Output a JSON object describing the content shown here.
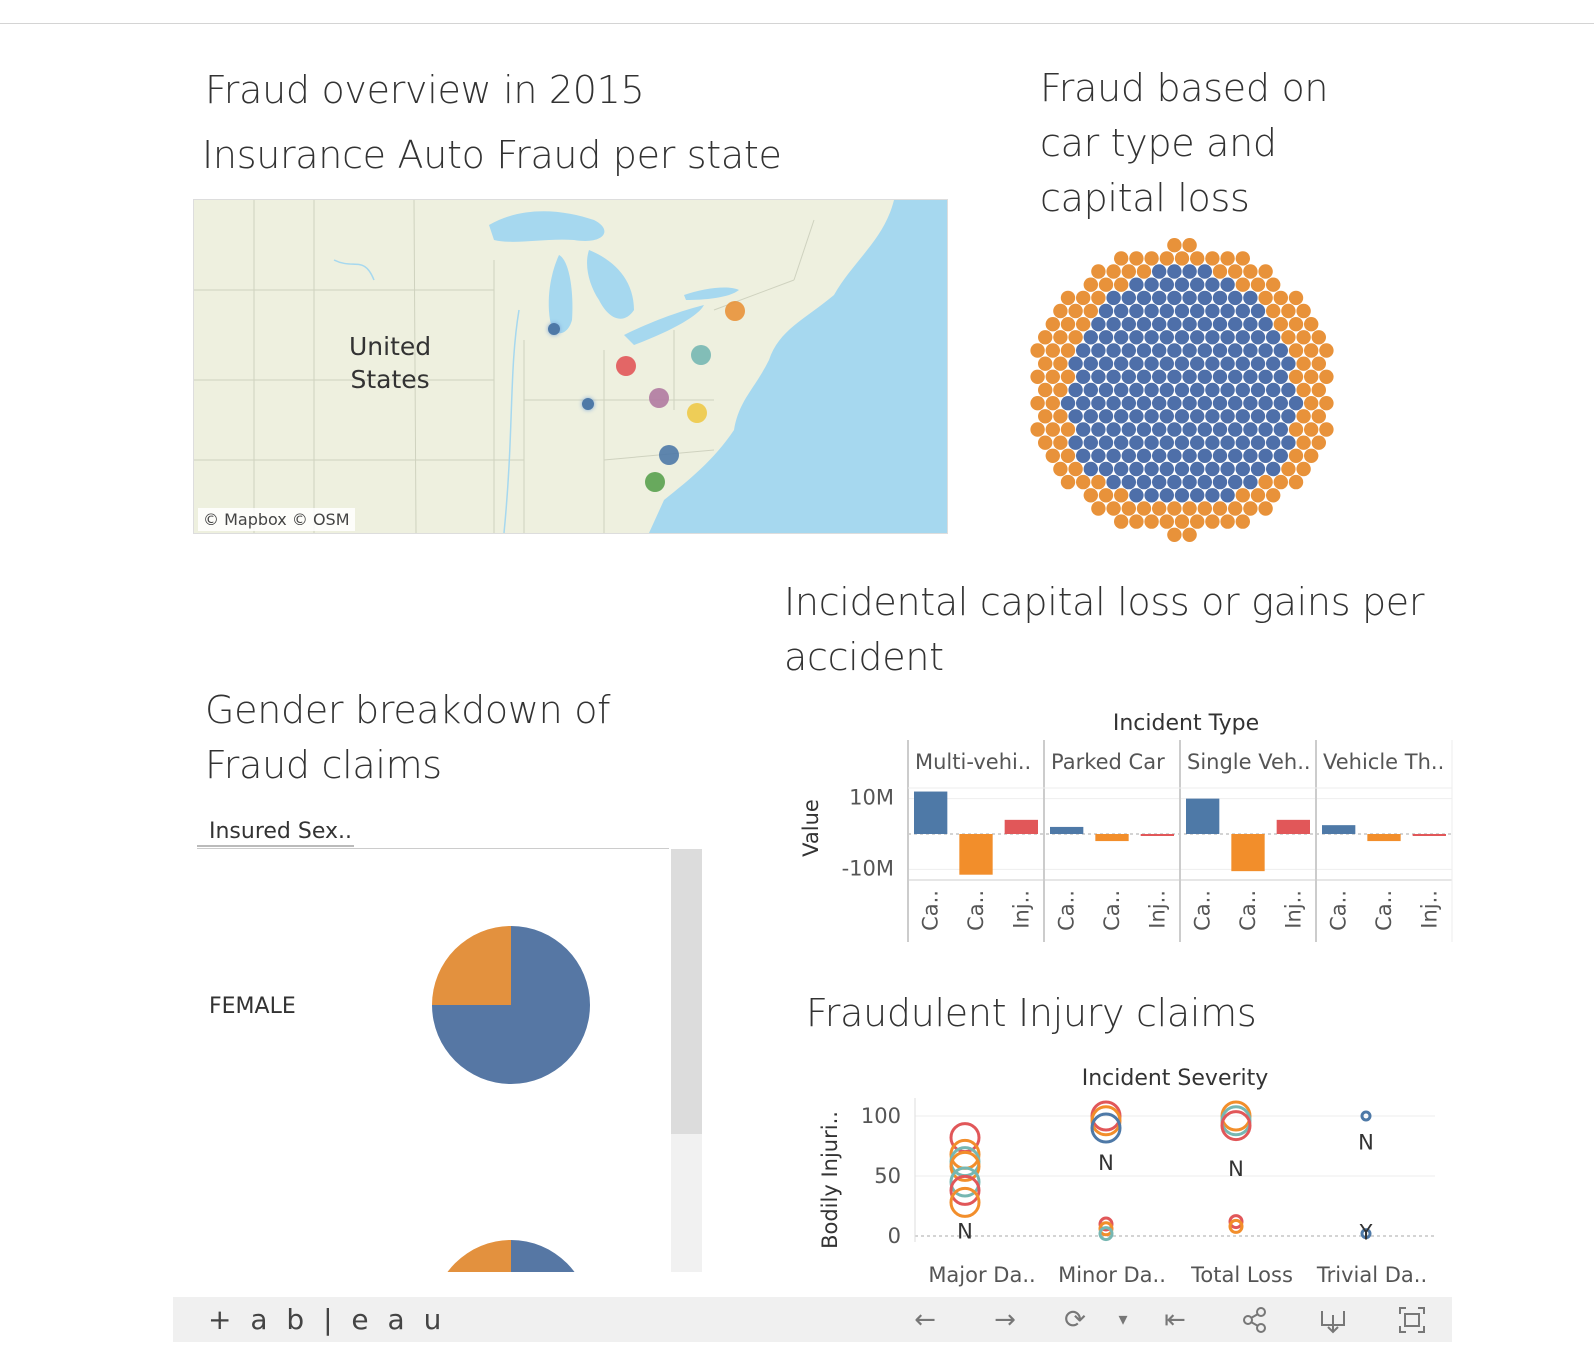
{
  "titles": {
    "overview": "Fraud overview in 2015",
    "map_title": "Insurance Auto Fraud per state",
    "car_type_line1": "Fraud based on",
    "car_type_line2": "car type and",
    "car_type_line3": "capital loss",
    "capital_line1": "Incidental capital loss or gains per",
    "capital_line2": "accident",
    "gender_line1": "Gender breakdown of",
    "gender_line2": "Fraud claims",
    "injury": "Fraudulent Injury claims"
  },
  "map": {
    "country_label_line1": "United",
    "country_label_line2": "States",
    "credit": "© Mapbox  © OSM",
    "colors": {
      "land": "#eef0df",
      "water": "#a6d8ef"
    }
  },
  "gender": {
    "header": "Insured Sex..",
    "rows": [
      {
        "label": "FEMALE",
        "share_blue": 0.75,
        "share_orange": 0.25
      },
      {
        "label": "",
        "share_blue": 0.5,
        "share_orange": 0.5
      }
    ]
  },
  "chart_data": [
    {
      "type": "bar",
      "title": "Incident Type",
      "ylabel": "Value",
      "yticks": [
        "10M",
        "-10M"
      ],
      "ylim": [
        -13000000,
        13000000
      ],
      "panels": [
        "Multi-vehi..",
        "Parked Car",
        "Single Veh..",
        "Vehicle Th.."
      ],
      "categories": [
        "Ca..",
        "Ca..",
        "Inj.."
      ],
      "series_colors": [
        "#4e79a7",
        "#f28e2b",
        "#e15759"
      ],
      "values": [
        [
          12000000,
          -11500000,
          4000000
        ],
        [
          2000000,
          -2000000,
          -400000
        ],
        [
          10000000,
          -10500000,
          4000000
        ],
        [
          2500000,
          -2000000,
          -400000
        ]
      ]
    },
    {
      "type": "scatter",
      "title": "Incident Severity",
      "ylabel": "Bodily Injuri..",
      "yticks": [
        "100",
        "50",
        "0"
      ],
      "ylim": [
        -5,
        115
      ],
      "categories": [
        "Major Da..",
        "Minor Da..",
        "Total Loss",
        "Trivial Da.."
      ],
      "point_labels": [
        "N",
        "N",
        "N",
        "N",
        "Y"
      ],
      "points": [
        {
          "cat": 0,
          "y": 82,
          "color": "#e15759"
        },
        {
          "cat": 0,
          "y": 68,
          "color": "#f28e2b"
        },
        {
          "cat": 0,
          "y": 62,
          "color": "#76b7b2"
        },
        {
          "cat": 0,
          "y": 58,
          "color": "#f28e2b"
        },
        {
          "cat": 0,
          "y": 45,
          "color": "#76b7b2"
        },
        {
          "cat": 0,
          "y": 38,
          "color": "#e15759"
        },
        {
          "cat": 0,
          "y": 28,
          "color": "#f28e2b"
        },
        {
          "cat": 1,
          "y": 100,
          "color": "#e15759"
        },
        {
          "cat": 1,
          "y": 96,
          "color": "#f28e2b"
        },
        {
          "cat": 1,
          "y": 90,
          "color": "#4e79a7"
        },
        {
          "cat": 1,
          "y": 10,
          "color": "#e15759"
        },
        {
          "cat": 1,
          "y": 6,
          "color": "#f28e2b"
        },
        {
          "cat": 1,
          "y": 2,
          "color": "#76b7b2"
        },
        {
          "cat": 2,
          "y": 100,
          "color": "#f28e2b"
        },
        {
          "cat": 2,
          "y": 96,
          "color": "#76b7b2"
        },
        {
          "cat": 2,
          "y": 92,
          "color": "#e15759"
        },
        {
          "cat": 2,
          "y": 12,
          "color": "#e15759"
        },
        {
          "cat": 2,
          "y": 8,
          "color": "#f28e2b"
        },
        {
          "cat": 3,
          "y": 100,
          "color": "#4e79a7"
        },
        {
          "cat": 3,
          "y": 2,
          "color": "#4e79a7"
        }
      ]
    }
  ],
  "toolbar": {
    "logo": "+ a b | e a u",
    "back": "←",
    "forward": "→",
    "redo": "⟳",
    "dropdown": "▾",
    "revert": "⇤",
    "share": "share",
    "download": "download",
    "fullscreen": "fullscreen"
  }
}
